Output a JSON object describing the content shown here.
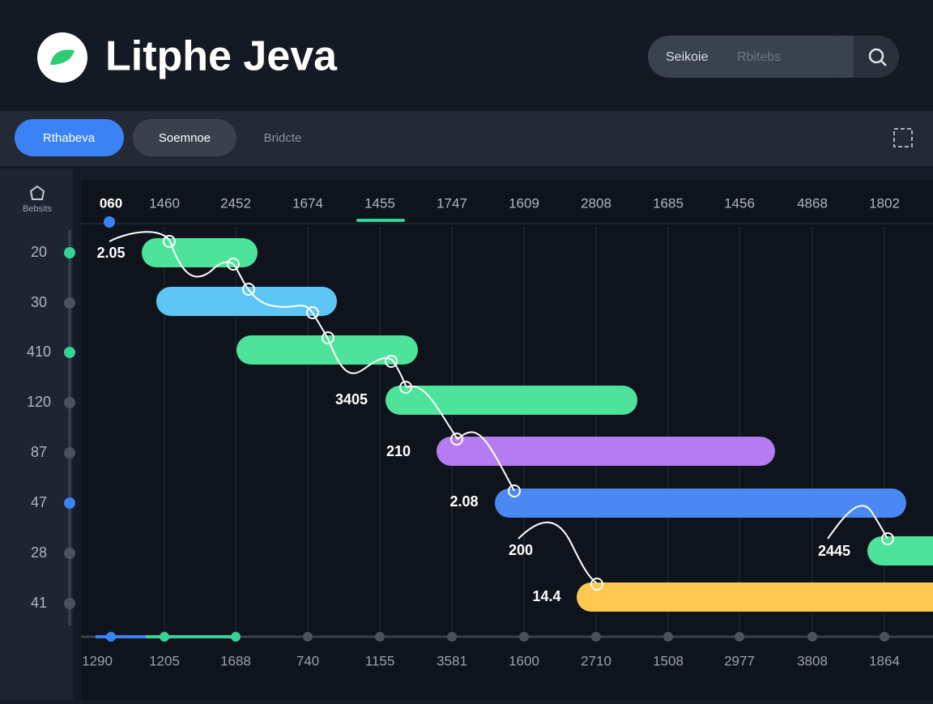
{
  "header": {
    "title": "Litphe Jeva",
    "search_button": "Seikoie",
    "search_placeholder": "Rbitebs"
  },
  "toolbar": {
    "tabs": [
      "Rthabeva",
      "Soemnoe",
      "Bridcte"
    ]
  },
  "sidebar": {
    "label": "Bebsits"
  },
  "timeline": {
    "top_labels": [
      "060",
      "1460",
      "2452",
      "1674",
      "1455",
      "1747",
      "1609",
      "2808",
      "1685",
      "1456",
      "4868",
      "1802"
    ],
    "row_labels": [
      "20",
      "30",
      "410",
      "120",
      "87",
      "47",
      "28",
      "41"
    ],
    "bottom_labels": [
      "1290",
      "1205",
      "1688",
      "740",
      "1155",
      "3581",
      "1600",
      "2710",
      "1508",
      "2977",
      "3808",
      "1864"
    ],
    "bar_labels": [
      "2.05",
      "3405",
      "210",
      "2.08",
      "200",
      "2445",
      "14.4"
    ]
  }
}
